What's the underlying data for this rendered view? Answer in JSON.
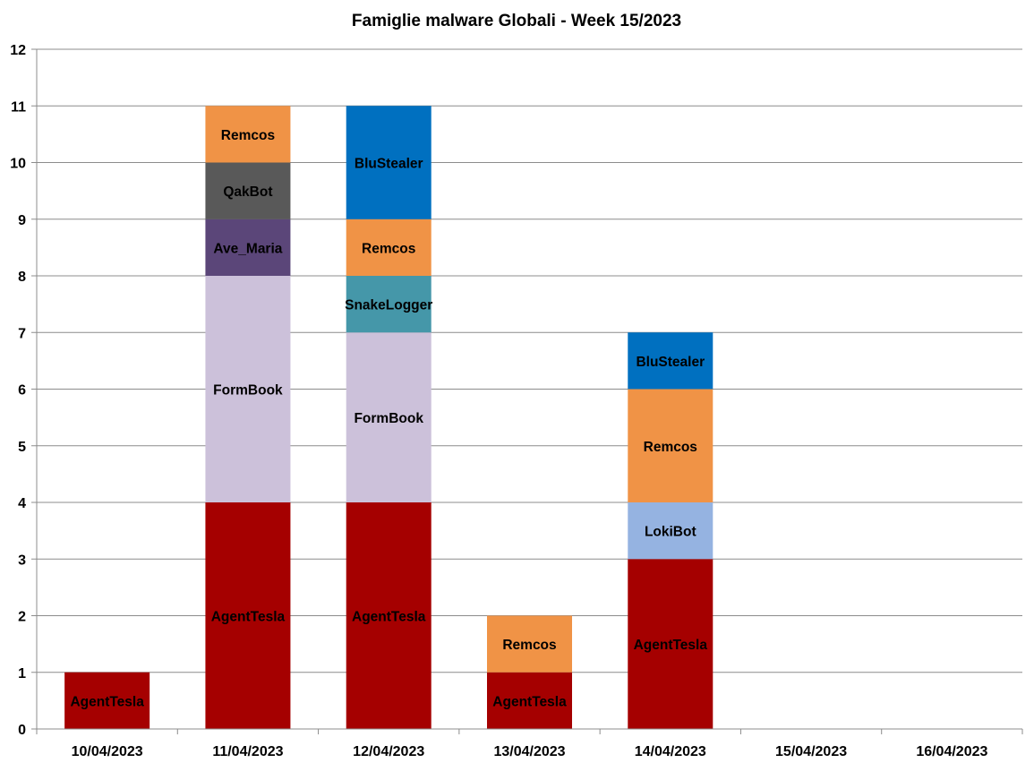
{
  "chart_data": {
    "type": "bar",
    "stacked": true,
    "title": "Famiglie malware Globali - Week 15/2023",
    "xlabel": "",
    "ylabel": "",
    "ylim": [
      0,
      12
    ],
    "yticks": [
      0,
      1,
      2,
      3,
      4,
      5,
      6,
      7,
      8,
      9,
      10,
      11,
      12
    ],
    "grid": true,
    "legend": "none",
    "categories": [
      "10/04/2023",
      "11/04/2023",
      "12/04/2023",
      "13/04/2023",
      "14/04/2023",
      "15/04/2023",
      "16/04/2023"
    ],
    "stacks": [
      [
        {
          "name": "AgentTesla",
          "value": 1
        }
      ],
      [
        {
          "name": "AgentTesla",
          "value": 4
        },
        {
          "name": "FormBook",
          "value": 4
        },
        {
          "name": "Ave_Maria",
          "value": 1
        },
        {
          "name": "QakBot",
          "value": 1
        },
        {
          "name": "Remcos",
          "value": 1
        }
      ],
      [
        {
          "name": "AgentTesla",
          "value": 4
        },
        {
          "name": "FormBook",
          "value": 3
        },
        {
          "name": "SnakeLogger",
          "value": 1
        },
        {
          "name": "Remcos",
          "value": 1
        },
        {
          "name": "BluStealer",
          "value": 2
        }
      ],
      [
        {
          "name": "AgentTesla",
          "value": 1
        },
        {
          "name": "Remcos",
          "value": 1
        }
      ],
      [
        {
          "name": "AgentTesla",
          "value": 3
        },
        {
          "name": "LokiBot",
          "value": 1
        },
        {
          "name": "Remcos",
          "value": 2
        },
        {
          "name": "BluStealer",
          "value": 1
        }
      ],
      [],
      []
    ],
    "colors": {
      "AgentTesla": "#a50000",
      "FormBook": "#ccc1da",
      "Ave_Maria": "#5b4679",
      "QakBot": "#595959",
      "Remcos": "#f09346",
      "SnakeLogger": "#4597a9",
      "BluStealer": "#0070c0",
      "LokiBot": "#95b3e1"
    }
  }
}
